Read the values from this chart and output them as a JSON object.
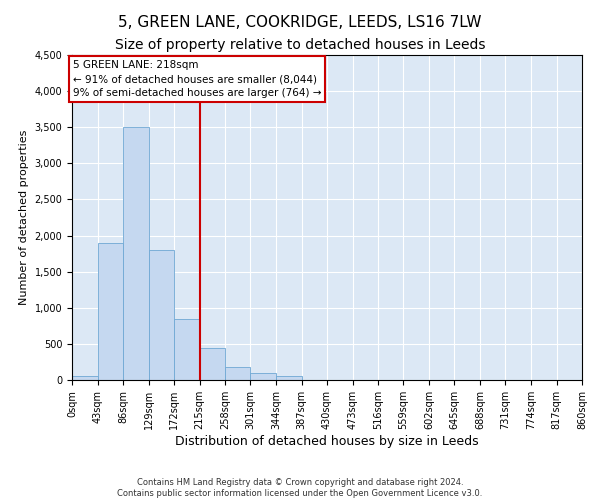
{
  "title": "5, GREEN LANE, COOKRIDGE, LEEDS, LS16 7LW",
  "subtitle": "Size of property relative to detached houses in Leeds",
  "xlabel": "Distribution of detached houses by size in Leeds",
  "ylabel": "Number of detached properties",
  "bin_labels": [
    "0sqm",
    "43sqm",
    "86sqm",
    "129sqm",
    "172sqm",
    "215sqm",
    "258sqm",
    "301sqm",
    "344sqm",
    "387sqm",
    "430sqm",
    "473sqm",
    "516sqm",
    "559sqm",
    "602sqm",
    "645sqm",
    "688sqm",
    "731sqm",
    "774sqm",
    "817sqm",
    "860sqm"
  ],
  "bin_edges": [
    0,
    43,
    86,
    129,
    172,
    215,
    258,
    301,
    344,
    387,
    430,
    473,
    516,
    559,
    602,
    645,
    688,
    731,
    774,
    817,
    860
  ],
  "bar_heights": [
    50,
    1900,
    3500,
    1800,
    850,
    450,
    175,
    100,
    60,
    0,
    0,
    0,
    0,
    0,
    0,
    0,
    0,
    0,
    0,
    0
  ],
  "bar_color": "#c5d8f0",
  "bar_edge_color": "#6fa8d4",
  "ylim": [
    0,
    4500
  ],
  "yticks": [
    0,
    500,
    1000,
    1500,
    2000,
    2500,
    3000,
    3500,
    4000,
    4500
  ],
  "vline_x": 215,
  "vline_color": "#cc0000",
  "annotation_title": "5 GREEN LANE: 218sqm",
  "annotation_line1": "← 91% of detached houses are smaller (8,044)",
  "annotation_line2": "9% of semi-detached houses are larger (764) →",
  "annotation_box_edgecolor": "#cc0000",
  "annotation_text_color": "#000000",
  "plot_bg_color": "#dce8f5",
  "footer_line1": "Contains HM Land Registry data © Crown copyright and database right 2024.",
  "footer_line2": "Contains public sector information licensed under the Open Government Licence v3.0.",
  "title_fontsize": 11,
  "subtitle_fontsize": 10,
  "ylabel_fontsize": 8,
  "xlabel_fontsize": 9,
  "tick_fontsize": 7,
  "annotation_fontsize": 7.5,
  "footer_fontsize": 6
}
